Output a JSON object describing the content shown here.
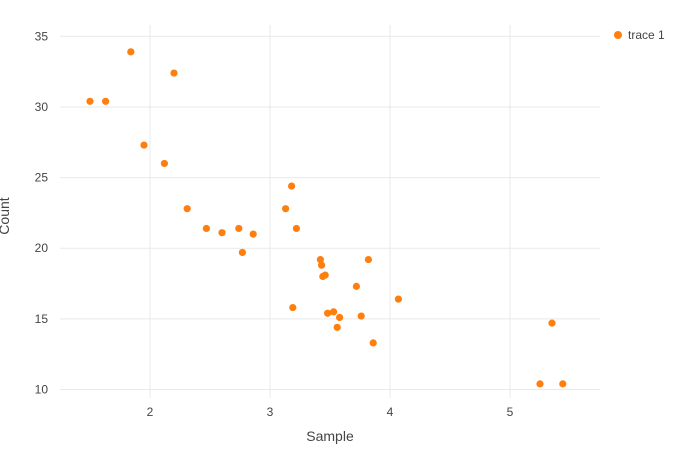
{
  "chart_data": {
    "type": "scatter",
    "title": "",
    "xlabel": "Sample",
    "ylabel": "Count",
    "legend": [
      "trace 1"
    ],
    "marker_color": "#ff7f0e",
    "grid_color": "#e9e9e9",
    "tick_color": "#444444",
    "background": "#ffffff",
    "legend_position": "top-right",
    "grid": true,
    "xlim": [
      1.25,
      5.75
    ],
    "ylim": [
      9.4,
      35.8
    ],
    "xticks": [
      2,
      3,
      4,
      5
    ],
    "yticks": [
      10,
      15,
      20,
      25,
      30,
      35
    ],
    "points": [
      [
        1.5,
        30.4
      ],
      [
        1.63,
        30.4
      ],
      [
        1.84,
        33.9
      ],
      [
        1.95,
        27.3
      ],
      [
        2.12,
        26.0
      ],
      [
        2.2,
        32.4
      ],
      [
        2.31,
        22.8
      ],
      [
        2.47,
        21.4
      ],
      [
        2.6,
        21.1
      ],
      [
        2.74,
        21.4
      ],
      [
        2.77,
        19.7
      ],
      [
        2.86,
        21.0
      ],
      [
        3.13,
        22.8
      ],
      [
        3.18,
        24.4
      ],
      [
        3.19,
        15.8
      ],
      [
        3.22,
        21.4
      ],
      [
        3.42,
        19.2
      ],
      [
        3.43,
        18.8
      ],
      [
        3.44,
        18.0
      ],
      [
        3.46,
        18.1
      ],
      [
        3.48,
        15.4
      ],
      [
        3.53,
        15.5
      ],
      [
        3.56,
        14.4
      ],
      [
        3.58,
        15.1
      ],
      [
        3.72,
        17.3
      ],
      [
        3.76,
        15.2
      ],
      [
        3.82,
        19.2
      ],
      [
        3.86,
        13.3
      ],
      [
        4.07,
        16.4
      ],
      [
        5.25,
        10.4
      ],
      [
        5.35,
        14.7
      ],
      [
        5.44,
        10.4
      ]
    ]
  }
}
